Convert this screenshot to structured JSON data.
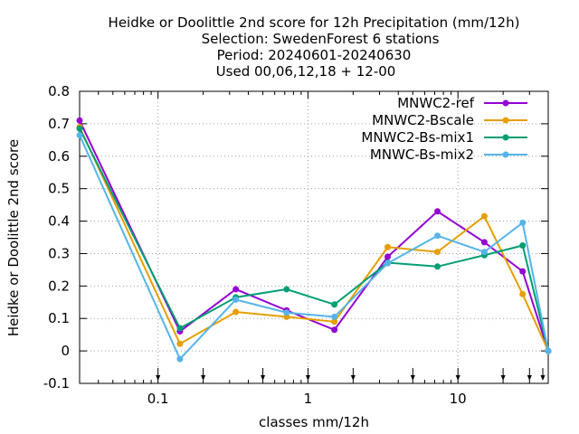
{
  "chart_data": {
    "type": "line",
    "title_lines": [
      "Heidke or Doolittle 2nd score  for 12h Precipitation (mm/12h)",
      "Selection: SwedenForest      6 stations",
      "Period: 20240601-20240630",
      "Used 00,06,12,18 + 12-00"
    ],
    "xlabel": "classes mm/12h",
    "ylabel": "Heidke or Doolittle 2nd score",
    "x_scale": "log",
    "xlim": [
      0.03,
      40
    ],
    "ylim": [
      -0.1,
      0.8
    ],
    "x_ticks": [
      0.1,
      1,
      10
    ],
    "x_tick_labels": [
      "0.1",
      "1",
      "10"
    ],
    "y_ticks": [
      -0.1,
      0,
      0.1,
      0.2,
      0.3,
      0.4,
      0.5,
      0.6,
      0.7,
      0.8
    ],
    "y_tick_labels": [
      "-0.1",
      "0",
      "0.1",
      "0.2",
      "0.3",
      "0.4",
      "0.5",
      "0.6",
      "0.7",
      "0.8"
    ],
    "grid": true,
    "legend_position": "top-right",
    "threshold_markers": [
      0.1,
      0.2,
      0.5,
      1,
      2,
      5,
      10,
      20,
      30,
      40
    ],
    "x": [
      0.03,
      0.14,
      0.33,
      0.72,
      1.5,
      3.4,
      7.3,
      15,
      27,
      40
    ],
    "series": [
      {
        "name": "MNWC2-ref",
        "color": "#9400d3",
        "values": [
          0.71,
          0.06,
          0.19,
          0.125,
          0.065,
          0.29,
          0.43,
          0.335,
          0.245,
          0.0
        ]
      },
      {
        "name": "MNWC2-Bscale",
        "color": "#e69f00",
        "values": [
          0.69,
          0.022,
          0.12,
          0.105,
          0.09,
          0.32,
          0.305,
          0.415,
          0.175,
          0.0
        ]
      },
      {
        "name": "MNWC2-Bs-mix1",
        "color": "#009e73",
        "values": [
          0.685,
          0.07,
          0.165,
          0.19,
          0.143,
          0.272,
          0.26,
          0.295,
          0.325,
          0.0
        ]
      },
      {
        "name": "MNWC-Bs-mix2",
        "color": "#56b4e9",
        "values": [
          0.665,
          -0.025,
          0.158,
          0.118,
          0.105,
          0.27,
          0.355,
          0.305,
          0.395,
          0.0
        ]
      }
    ]
  }
}
